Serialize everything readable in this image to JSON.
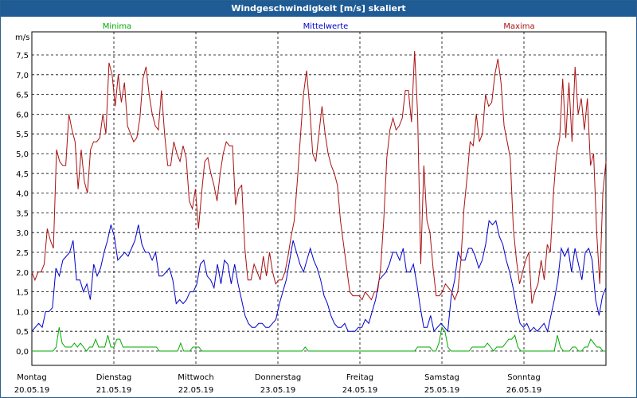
{
  "chart_data": {
    "type": "line",
    "title": "Windgeschwindigkeit [m/s] skaliert",
    "ylabel": "m/s",
    "ylim": [
      0,
      8
    ],
    "yticks": [
      "0,0",
      "0,5",
      "1,0",
      "1,5",
      "2,0",
      "2,5",
      "3,0",
      "3,5",
      "4,0",
      "4,5",
      "5,0",
      "5,5",
      "6,0",
      "6,5",
      "7,0",
      "7,5"
    ],
    "x_range": [
      0,
      7
    ],
    "days": [
      {
        "name": "Montag",
        "date": "20.05.19"
      },
      {
        "name": "Dienstag",
        "date": "21.05.19"
      },
      {
        "name": "Mittwoch",
        "date": "22.05.19"
      },
      {
        "name": "Donnerstag",
        "date": "23.05.19"
      },
      {
        "name": "Freitag",
        "date": "24.05.19"
      },
      {
        "name": "Samstag",
        "date": "25.05.19"
      },
      {
        "name": "Sonntag",
        "date": "26.05.19"
      }
    ],
    "series": [
      {
        "name": "Minima",
        "color": "#00aa00",
        "values": [
          0,
          0,
          0,
          0,
          0,
          0,
          0,
          0,
          0.1,
          0.6,
          0.2,
          0.1,
          0.1,
          0.1,
          0.2,
          0.1,
          0.2,
          0.1,
          0,
          0.1,
          0.1,
          0.3,
          0.1,
          0.1,
          0.1,
          0.4,
          0.1,
          0.1,
          0.3,
          0.3,
          0.1,
          0.1,
          0.1,
          0.1,
          0.1,
          0.1,
          0.1,
          0.1,
          0.1,
          0.1,
          0.1,
          0.1,
          0,
          0,
          0,
          0,
          0,
          0,
          0,
          0.2,
          0,
          0,
          0,
          0.1,
          0.1,
          0.1,
          0,
          0,
          0,
          0,
          0,
          0,
          0,
          0,
          0,
          0,
          0,
          0,
          0,
          0,
          0,
          0,
          0,
          0,
          0,
          0,
          0,
          0,
          0,
          0,
          0,
          0,
          0,
          0,
          0,
          0,
          0,
          0,
          0,
          0,
          0.1,
          0,
          0,
          0,
          0,
          0,
          0,
          0,
          0,
          0,
          0,
          0,
          0,
          0,
          0,
          0,
          0,
          0,
          0,
          0,
          0,
          0,
          0,
          0,
          0,
          0,
          0,
          0,
          0,
          0,
          0,
          0,
          0,
          0,
          0,
          0,
          0,
          0.1,
          0.1,
          0.1,
          0.1,
          0.1,
          0,
          0,
          0.2,
          0.6,
          0.5,
          0.1,
          0,
          0,
          0,
          0,
          0,
          0,
          0,
          0.1,
          0.1,
          0.1,
          0.1,
          0.1,
          0.2,
          0.1,
          0,
          0.1,
          0.1,
          0.1,
          0.2,
          0.3,
          0.3,
          0.4,
          0.1,
          0,
          0,
          0,
          0,
          0,
          0,
          0,
          0,
          0,
          0,
          0,
          0,
          0.4,
          0.1,
          0,
          0,
          0,
          0.1,
          0.1,
          0,
          0,
          0.1,
          0.1,
          0.3,
          0.2,
          0.1,
          0.1,
          0,
          0
        ]
      },
      {
        "name": "Mittelwerte",
        "color": "#0000cc",
        "values": [
          0.5,
          0.6,
          0.7,
          0.6,
          1.0,
          1.0,
          1.1,
          2.1,
          1.9,
          2.3,
          2.4,
          2.5,
          2.8,
          1.8,
          1.8,
          1.5,
          1.7,
          1.3,
          2.2,
          1.9,
          2.1,
          2.5,
          2.8,
          3.2,
          2.9,
          2.3,
          2.4,
          2.5,
          2.4,
          2.6,
          2.8,
          3.2,
          2.7,
          2.5,
          2.5,
          2.3,
          2.5,
          1.9,
          1.9,
          2.0,
          2.1,
          1.8,
          1.2,
          1.3,
          1.2,
          1.3,
          1.5,
          1.5,
          1.7,
          2.2,
          2.3,
          1.9,
          1.8,
          1.6,
          2.2,
          1.7,
          2.3,
          2.2,
          1.7,
          2.2,
          1.7,
          1.3,
          0.9,
          0.7,
          0.6,
          0.6,
          0.7,
          0.7,
          0.6,
          0.6,
          0.7,
          0.8,
          1.2,
          1.5,
          1.8,
          2.3,
          2.8,
          2.5,
          2.2,
          2.0,
          2.3,
          2.6,
          2.3,
          2.1,
          1.8,
          1.4,
          1.2,
          0.9,
          0.7,
          0.6,
          0.6,
          0.7,
          0.5,
          0.5,
          0.5,
          0.6,
          0.6,
          0.8,
          0.7,
          1.0,
          1.3,
          1.8,
          1.9,
          2.0,
          2.2,
          2.5,
          2.5,
          2.3,
          2.6,
          2.0,
          2.0,
          2.2,
          1.7,
          1.1,
          0.6,
          0.6,
          0.9,
          0.5,
          0.6,
          0.7,
          0.6,
          0.5,
          1.4,
          1.8,
          2.5,
          2.3,
          2.3,
          2.6,
          2.6,
          2.4,
          2.1,
          2.3,
          2.7,
          3.3,
          3.2,
          3.3,
          2.9,
          2.7,
          2.3,
          2.0,
          1.6,
          1.1,
          0.7,
          0.6,
          0.7,
          0.5,
          0.6,
          0.5,
          0.6,
          0.7,
          0.5,
          0.9,
          1.3,
          1.8,
          2.6,
          2.4,
          2.6,
          2.0,
          2.6,
          2.2,
          1.8,
          2.5,
          2.6,
          2.3,
          1.3,
          0.9,
          1.4,
          1.6
        ]
      },
      {
        "name": "Maxima",
        "color": "#aa1111",
        "values": [
          2.0,
          1.8,
          2.0,
          2.0,
          2.2,
          3.1,
          2.8,
          2.6,
          5.1,
          4.8,
          4.7,
          4.7,
          6.0,
          5.6,
          5.3,
          4.1,
          5.1,
          4.3,
          4.0,
          5.1,
          5.3,
          5.3,
          5.4,
          6.0,
          5.5,
          7.3,
          7.0,
          6.2,
          7.0,
          6.3,
          6.8,
          5.7,
          5.5,
          5.3,
          5.4,
          5.9,
          6.9,
          7.2,
          6.5,
          6.0,
          5.7,
          5.6,
          6.6,
          5.5,
          4.7,
          4.7,
          5.3,
          5.0,
          4.8,
          5.2,
          4.9,
          3.8,
          3.6,
          4.1,
          3.1,
          4.0,
          4.8,
          4.9,
          4.5,
          4.2,
          3.8,
          4.5,
          5.0,
          5.3,
          5.2,
          5.2,
          3.7,
          4.1,
          4.2,
          2.6,
          1.8,
          1.8,
          2.2,
          2.0,
          1.8,
          2.4,
          1.9,
          2.5,
          2.0,
          1.7,
          1.8,
          1.8,
          2.0,
          2.4,
          2.9,
          3.3,
          4.3,
          5.4,
          6.5,
          7.1,
          6.2,
          5.0,
          4.8,
          5.5,
          6.2,
          5.5,
          5.0,
          4.7,
          4.5,
          4.2,
          3.3,
          2.7,
          2.1,
          1.5,
          1.4,
          1.4,
          1.4,
          1.3,
          1.5,
          1.4,
          1.3,
          1.5,
          1.5,
          2.1,
          3.3,
          4.9,
          5.6,
          5.9,
          5.6,
          5.7,
          5.9,
          6.6,
          6.6,
          5.8,
          7.6,
          6.0,
          2.2,
          4.7,
          3.3,
          3.0,
          2.1,
          1.4,
          1.4,
          1.5,
          1.7,
          1.6,
          1.5,
          1.3,
          1.5,
          2.3,
          3.6,
          4.4,
          5.3,
          5.2,
          6.0,
          5.3,
          5.5,
          6.5,
          6.2,
          6.3,
          7.0,
          7.4,
          6.8,
          5.7,
          5.3,
          4.9,
          3.1,
          2.3,
          1.7,
          2.0,
          2.3,
          2.5,
          1.2,
          1.5,
          1.7,
          2.3,
          1.8,
          2.7,
          2.5,
          4.0,
          5.0,
          5.4,
          6.9,
          5.4,
          6.8,
          5.3,
          7.2,
          6.0,
          6.4,
          5.6,
          6.4,
          4.7,
          5.0,
          3.0,
          1.7,
          4.0,
          4.8
        ]
      }
    ]
  }
}
